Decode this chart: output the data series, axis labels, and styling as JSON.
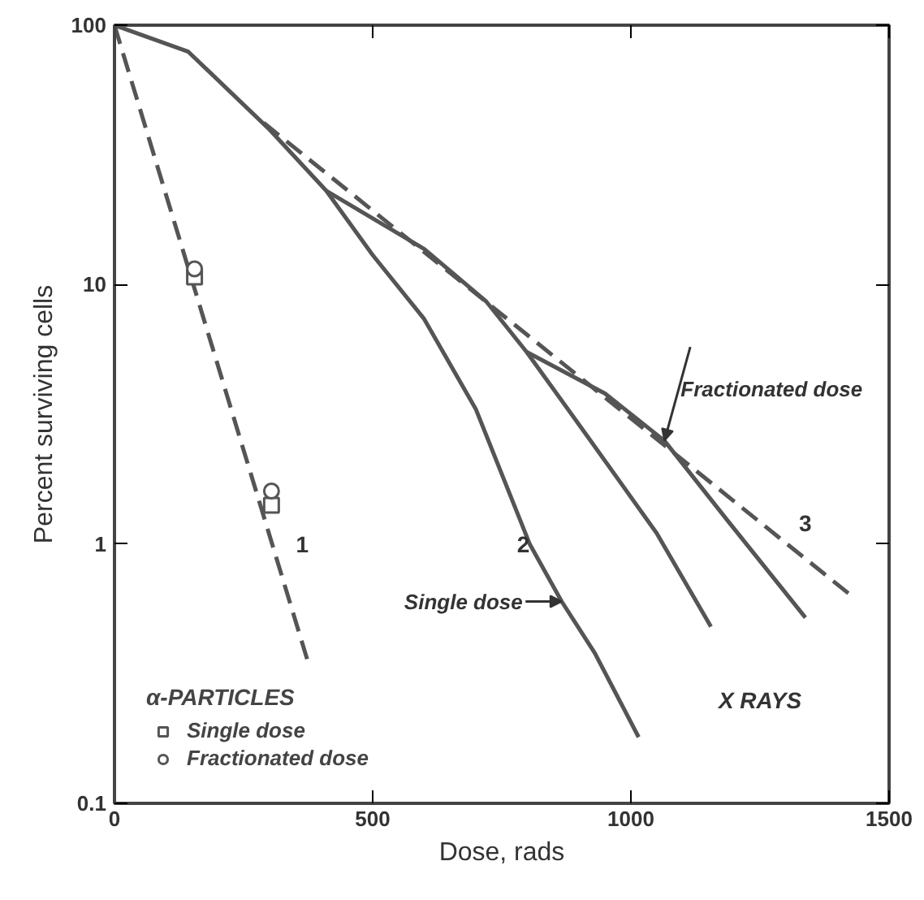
{
  "chart_data": {
    "type": "line",
    "xlabel": "Dose, rads",
    "ylabel": "Percent surviving cells",
    "log": "y",
    "xlim": [
      0,
      1500
    ],
    "ylim": [
      0.1,
      100
    ],
    "xticks": [
      0,
      500,
      1000,
      1500
    ],
    "yticks": [
      0.1,
      1,
      10,
      100
    ],
    "grid": false,
    "legend": "bottom left",
    "legend_title": "α-PARTICLES",
    "series": [
      {
        "line_style": "dashed",
        "color": "#555555",
        "x": [
          0,
          373
        ],
        "values": [
          100,
          0.36
        ]
      },
      {
        "line_style": "solid",
        "color": "#555555",
        "x": [
          0,
          143,
          298,
          410,
          500,
          599,
          700,
          804,
          866,
          930,
          1015
        ],
        "values": [
          100,
          79,
          40,
          23,
          13,
          7.4,
          3.3,
          1.0,
          0.6,
          0.38,
          0.18
        ]
      },
      {
        "line_style": "solid",
        "color": "#555555",
        "x": [
          410,
          600,
          720,
          798,
          910,
          1050,
          1155
        ],
        "values": [
          23,
          13.7,
          8.6,
          5.5,
          2.7,
          1.1,
          0.48
        ]
      },
      {
        "line_style": "solid",
        "color": "#555555",
        "x": [
          798,
          950,
          1065,
          1186,
          1338
        ],
        "values": [
          5.5,
          3.8,
          2.5,
          1.24,
          0.52
        ]
      },
      {
        "line_style": "dashed",
        "color": "#555555",
        "x": [
          289,
          1432
        ],
        "values": [
          42,
          0.62
        ]
      },
      {
        "type": "scatter",
        "marker": "square",
        "name": "Single dose",
        "color": "#555555",
        "x": [
          155,
          304
        ],
        "values": [
          10.7,
          1.41
        ]
      },
      {
        "type": "scatter",
        "marker": "circle",
        "name": "Fractionated dose",
        "color": "#555555",
        "x": [
          155,
          304
        ],
        "values": [
          11.5,
          1.6
        ]
      }
    ],
    "annotations": [
      "1",
      "2",
      "3",
      {
        "text": "Single dose",
        "x": 866,
        "y": 0.6
      },
      {
        "text": "Fractionated dose",
        "x": 1065,
        "y": 2.5
      },
      "X RAYS"
    ]
  }
}
